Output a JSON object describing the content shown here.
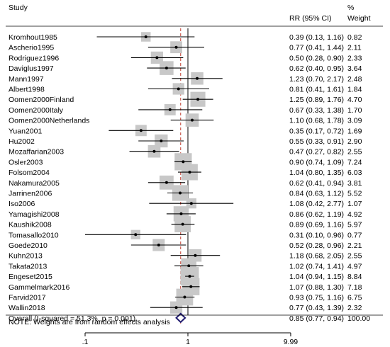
{
  "chart_data": {
    "type": "forest",
    "header": {
      "study": "Study",
      "effect": "RR (95% CI)",
      "weight_line1": "%",
      "weight_line2": "Weight"
    },
    "x_scale": "log",
    "xlim": [
      0.1,
      10
    ],
    "ticks": [
      {
        "value": 0.1,
        "label": ".1"
      },
      {
        "value": 1,
        "label": "1"
      },
      {
        "value": 9.99,
        "label": "9.99"
      }
    ],
    "null_line": 1,
    "pooled_line": 0.85,
    "studies": [
      {
        "name": "Kromhout1985",
        "rr": 0.39,
        "lo": 0.13,
        "hi": 1.16,
        "rr_text": "0.39 (0.13, 1.16)",
        "weight": 0.82,
        "weight_text": "0.82"
      },
      {
        "name": "Ascherio1995",
        "rr": 0.77,
        "lo": 0.41,
        "hi": 1.44,
        "rr_text": "0.77 (0.41, 1.44)",
        "weight": 2.11,
        "weight_text": "2.11"
      },
      {
        "name": "Rodriguez1996",
        "rr": 0.5,
        "lo": 0.28,
        "hi": 0.9,
        "rr_text": "0.50 (0.28, 0.90)",
        "weight": 2.33,
        "weight_text": "2.33"
      },
      {
        "name": "Daviglus1997",
        "rr": 0.62,
        "lo": 0.4,
        "hi": 0.95,
        "rr_text": "0.62 (0.40, 0.95)",
        "weight": 3.64,
        "weight_text": "3.64"
      },
      {
        "name": "Mann1997",
        "rr": 1.23,
        "lo": 0.7,
        "hi": 2.17,
        "rr_text": "1.23 (0.70, 2.17)",
        "weight": 2.48,
        "weight_text": "2.48"
      },
      {
        "name": "Albert1998",
        "rr": 0.81,
        "lo": 0.41,
        "hi": 1.61,
        "rr_text": "0.81 (0.41, 1.61)",
        "weight": 1.84,
        "weight_text": "1.84"
      },
      {
        "name": "Oomen2000Finland",
        "rr": 1.25,
        "lo": 0.89,
        "hi": 1.76,
        "rr_text": "1.25 (0.89, 1.76)",
        "weight": 4.7,
        "weight_text": "4.70"
      },
      {
        "name": "Oomen2000Italy",
        "rr": 0.67,
        "lo": 0.33,
        "hi": 1.38,
        "rr_text": "0.67 (0.33, 1.38)",
        "weight": 1.7,
        "weight_text": "1.70"
      },
      {
        "name": "Oomen2000Netherlands",
        "rr": 1.1,
        "lo": 0.68,
        "hi": 1.78,
        "rr_text": "1.10 (0.68, 1.78)",
        "weight": 3.09,
        "weight_text": "3.09"
      },
      {
        "name": "Yuan2001",
        "rr": 0.35,
        "lo": 0.17,
        "hi": 0.72,
        "rr_text": "0.35 (0.17, 0.72)",
        "weight": 1.69,
        "weight_text": "1.69"
      },
      {
        "name": "Hu2002",
        "rr": 0.55,
        "lo": 0.33,
        "hi": 0.91,
        "rr_text": "0.55 (0.33, 0.91)",
        "weight": 2.9,
        "weight_text": "2.90"
      },
      {
        "name": "Mozaffarian2003",
        "rr": 0.47,
        "lo": 0.27,
        "hi": 0.82,
        "rr_text": "0.47 (0.27, 0.82)",
        "weight": 2.55,
        "weight_text": "2.55"
      },
      {
        "name": "Osler2003",
        "rr": 0.9,
        "lo": 0.74,
        "hi": 1.09,
        "rr_text": "0.90 (0.74, 1.09)",
        "weight": 7.24,
        "weight_text": "7.24"
      },
      {
        "name": "Folsom2004",
        "rr": 1.04,
        "lo": 0.8,
        "hi": 1.35,
        "rr_text": "1.04 (0.80, 1.35)",
        "weight": 6.03,
        "weight_text": "6.03"
      },
      {
        "name": "Nakamura2005",
        "rr": 0.62,
        "lo": 0.41,
        "hi": 0.94,
        "rr_text": "0.62 (0.41, 0.94)",
        "weight": 3.81,
        "weight_text": "3.81"
      },
      {
        "name": "Jarrinen2006",
        "rr": 0.84,
        "lo": 0.63,
        "hi": 1.12,
        "rr_text": "0.84 (0.63, 1.12)",
        "weight": 5.52,
        "weight_text": "5.52"
      },
      {
        "name": "Iso2006",
        "rr": 1.08,
        "lo": 0.42,
        "hi": 2.77,
        "rr_text": "1.08 (0.42, 2.77)",
        "weight": 1.07,
        "weight_text": "1.07"
      },
      {
        "name": "Yamagishi2008",
        "rr": 0.86,
        "lo": 0.62,
        "hi": 1.19,
        "rr_text": "0.86 (0.62, 1.19)",
        "weight": 4.92,
        "weight_text": "4.92"
      },
      {
        "name": "Kaushik2008",
        "rr": 0.89,
        "lo": 0.69,
        "hi": 1.16,
        "rr_text": "0.89 (0.69, 1.16)",
        "weight": 5.97,
        "weight_text": "5.97"
      },
      {
        "name": "Tomasallo2010",
        "rr": 0.31,
        "lo": 0.1,
        "hi": 0.96,
        "rr_text": "0.31 (0.10, 0.96)",
        "weight": 0.77,
        "weight_text": "0.77"
      },
      {
        "name": "Goede2010",
        "rr": 0.52,
        "lo": 0.28,
        "hi": 0.96,
        "rr_text": "0.52 (0.28, 0.96)",
        "weight": 2.21,
        "weight_text": "2.21"
      },
      {
        "name": "Kuhn2013",
        "rr": 1.18,
        "lo": 0.68,
        "hi": 2.05,
        "rr_text": "1.18 (0.68, 2.05)",
        "weight": 2.55,
        "weight_text": "2.55"
      },
      {
        "name": "Takata2013",
        "rr": 1.02,
        "lo": 0.74,
        "hi": 1.41,
        "rr_text": "1.02 (0.74, 1.41)",
        "weight": 4.97,
        "weight_text": "4.97"
      },
      {
        "name": "Engeset2015",
        "rr": 1.04,
        "lo": 0.94,
        "hi": 1.15,
        "rr_text": "1.04 (0.94, 1.15)",
        "weight": 8.84,
        "weight_text": "8.84"
      },
      {
        "name": "Gammelmark2016",
        "rr": 1.07,
        "lo": 0.88,
        "hi": 1.3,
        "rr_text": "1.07 (0.88, 1.30)",
        "weight": 7.18,
        "weight_text": "7.18"
      },
      {
        "name": "Farvid2017",
        "rr": 0.93,
        "lo": 0.75,
        "hi": 1.16,
        "rr_text": "0.93 (0.75, 1.16)",
        "weight": 6.75,
        "weight_text": "6.75"
      },
      {
        "name": "Wallin2018",
        "rr": 0.77,
        "lo": 0.43,
        "hi": 1.39,
        "rr_text": "0.77 (0.43, 1.39)",
        "weight": 2.32,
        "weight_text": "2.32"
      }
    ],
    "overall": {
      "label": "Overall  (I-squared = 51.3%, p = 0.001)",
      "rr": 0.85,
      "lo": 0.77,
      "hi": 0.94,
      "rr_text": "0.85 (0.77, 0.94)",
      "weight_text": "100.00"
    },
    "note": "NOTE: Weights are from random effects analysis",
    "colors": {
      "box": "#c8c8c8",
      "line": "#000000",
      "pooled_line": "#c0392b",
      "diamond": "#1f1a6e"
    }
  }
}
